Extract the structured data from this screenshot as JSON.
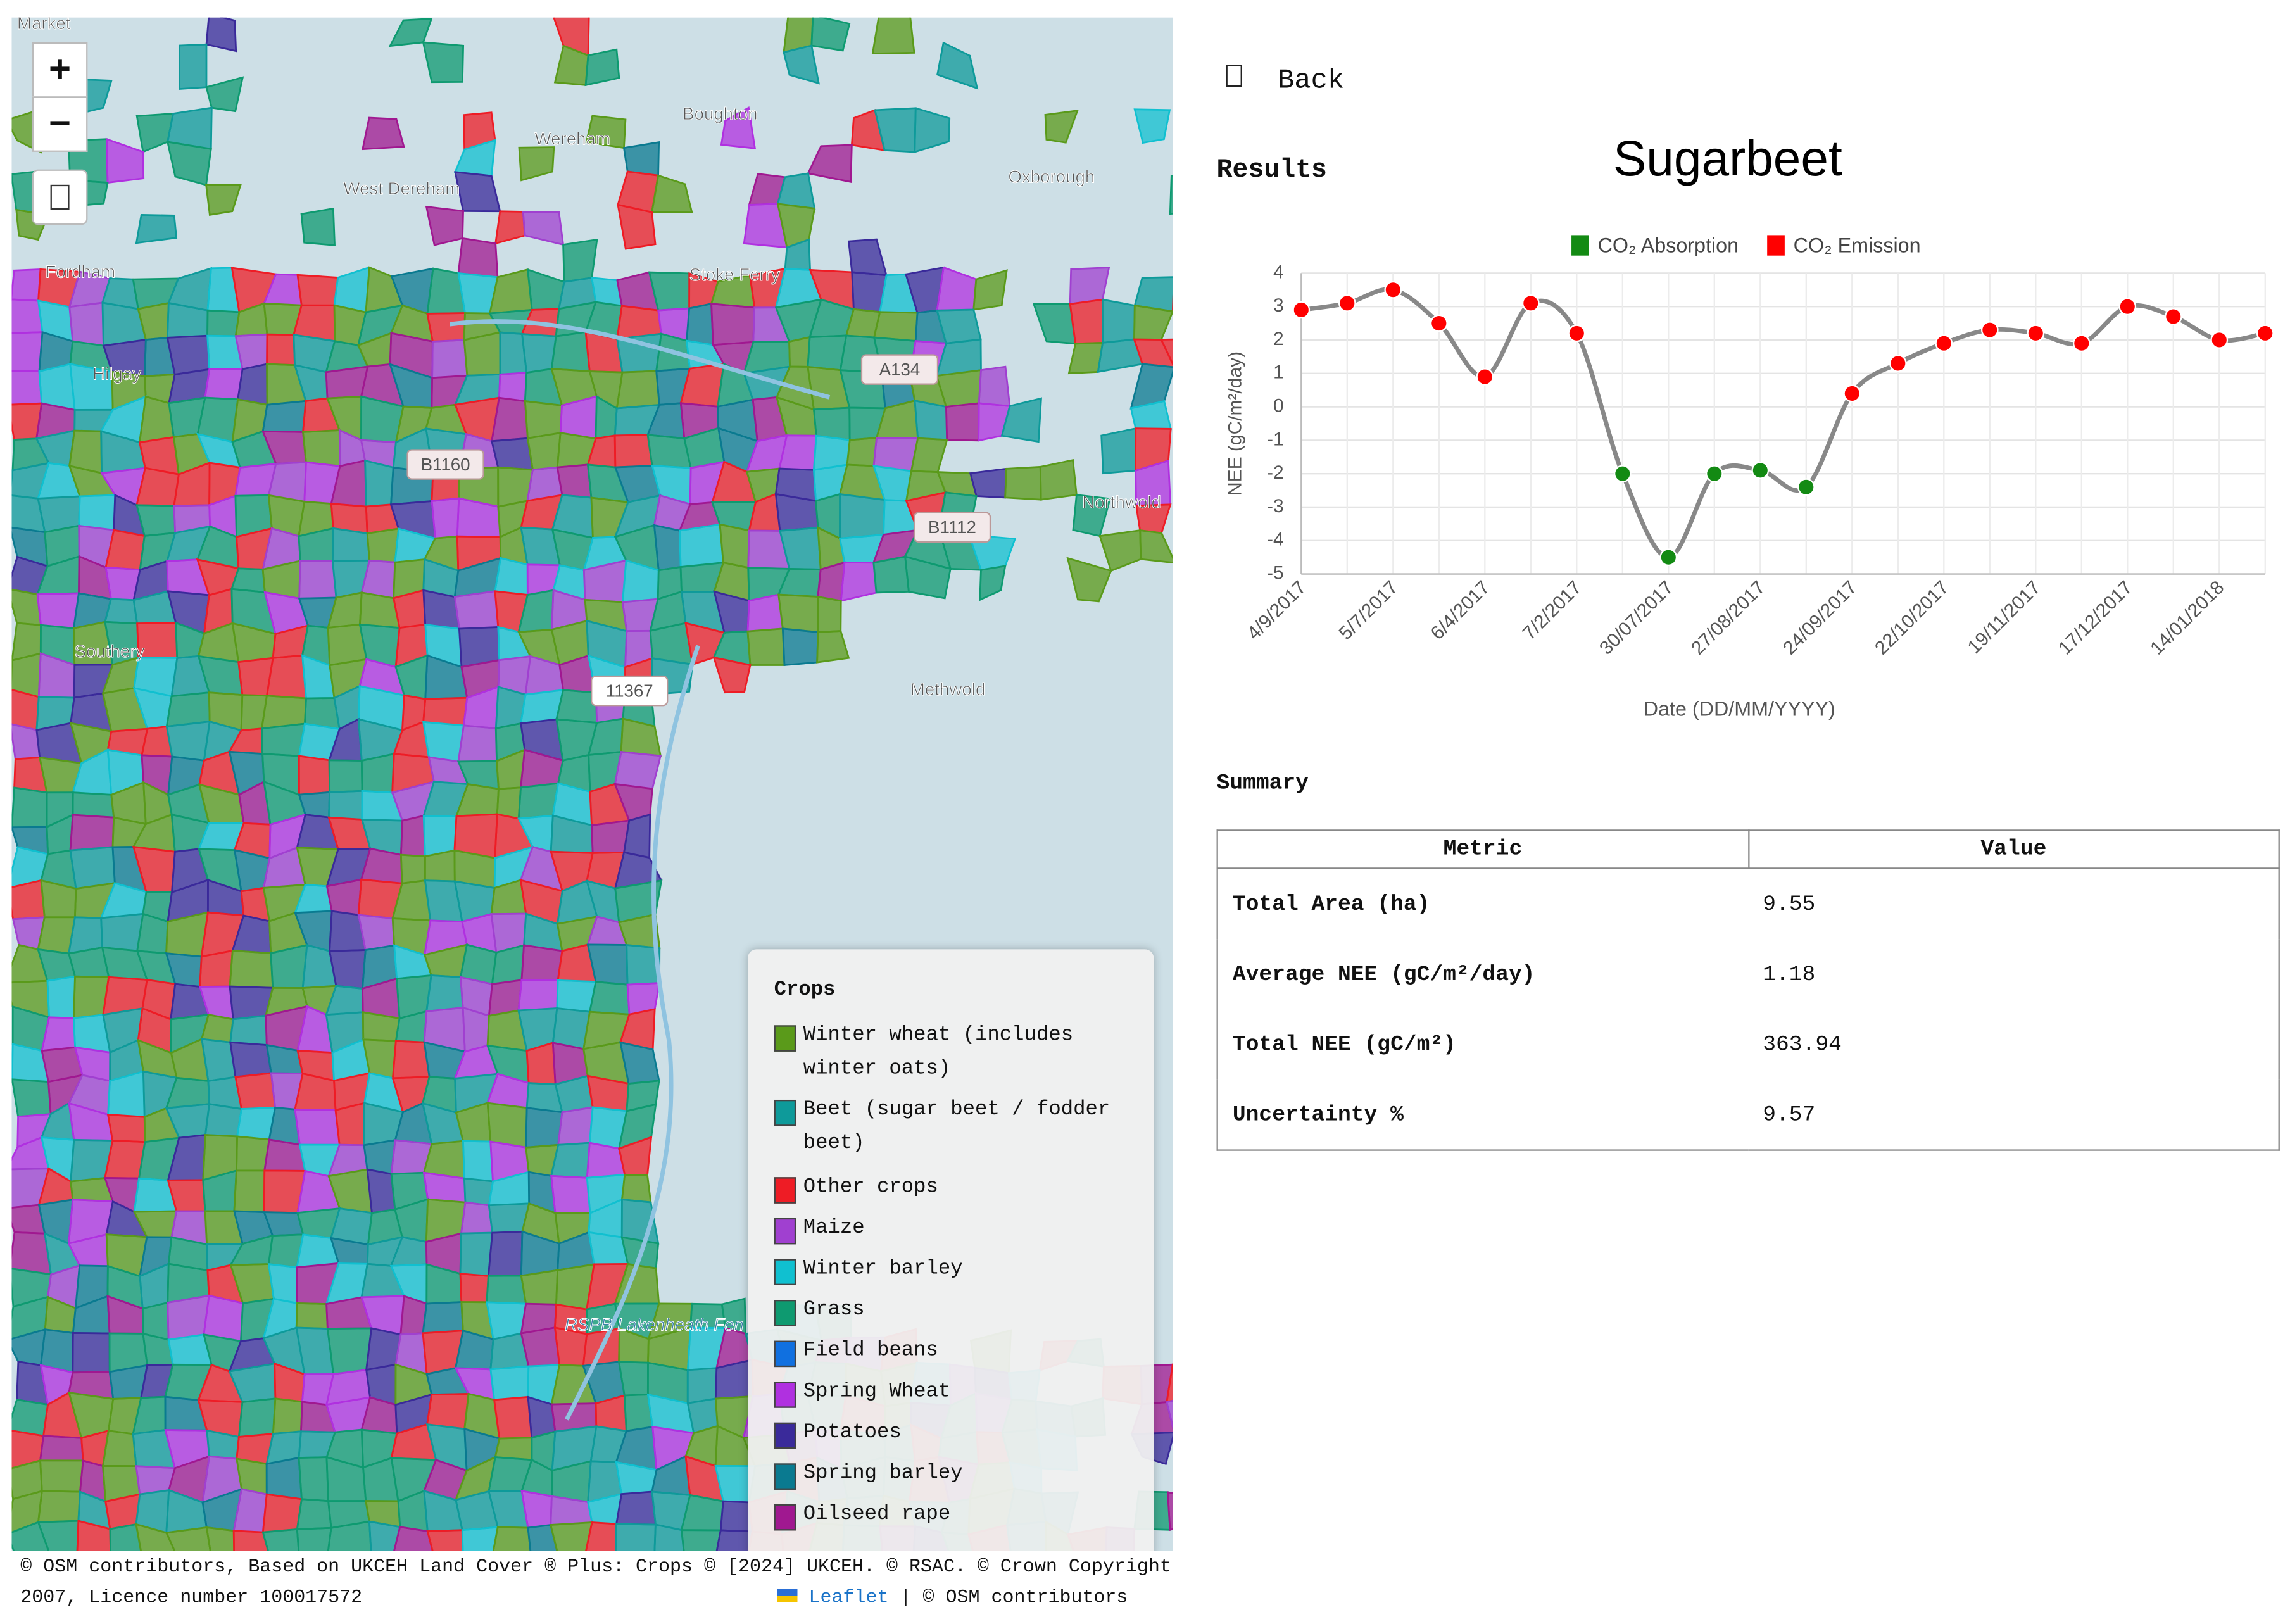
{
  "map": {
    "zoom_in": "+",
    "zoom_out": "−",
    "places": [
      "Market",
      "Boughton",
      "Wereham",
      "West Dereham",
      "Oxborough",
      "Fordham",
      "Stoke Ferry",
      "A134",
      "Hilgay",
      "B1160",
      "B1112",
      "Northwold",
      "Southery",
      "11367",
      "Methwold",
      "RSPB Lakenheath Fen"
    ],
    "legend": {
      "title": "Crops",
      "items": [
        {
          "label": "Winter wheat (includes winter oats)",
          "color": "#5a9a1a"
        },
        {
          "label": "Beet (sugar beet / fodder beet)",
          "color": "#0e9a9a"
        },
        {
          "label": "Other crops",
          "color": "#ee1c25"
        },
        {
          "label": "Maize",
          "color": "#a040d0"
        },
        {
          "label": "Winter barley",
          "color": "#10c0d0"
        },
        {
          "label": "Grass",
          "color": "#0e9a70"
        },
        {
          "label": "Field beans",
          "color": "#1070e0"
        },
        {
          "label": "Spring Wheat",
          "color": "#b030e0"
        },
        {
          "label": "Potatoes",
          "color": "#3a2a9a"
        },
        {
          "label": "Spring barley",
          "color": "#0a7a90"
        },
        {
          "label": "Oilseed rape",
          "color": "#a01890"
        }
      ]
    },
    "attribution": "© OSM contributors, Based on UKCEH Land Cover ® Plus: Crops © [2024] UKCEH. © RSAC. © Crown Copyright 2007, Licence number 100017572",
    "leaflet": "Leaflet",
    "osm": "| © OSM contributors"
  },
  "back": "Back",
  "results": "Results",
  "chart_data": {
    "type": "line",
    "title": "Sugarbeet",
    "legend": [
      {
        "label": "CO₂ Absorption",
        "color": "#138a13"
      },
      {
        "label": "CO₂ Emission",
        "color": "#ff0000"
      }
    ],
    "categories": [
      "4/9/2017",
      null,
      "5/7/2017",
      null,
      "6/4/2017",
      null,
      "7/2/2017",
      null,
      "30/07/2017",
      null,
      "27/08/2017",
      null,
      "24/09/2017",
      null,
      "22/10/2017",
      null,
      "19/11/2017",
      null,
      "17/12/2017",
      null,
      "14/01/2018",
      null
    ],
    "values": [
      2.9,
      3.1,
      3.5,
      2.5,
      0.9,
      3.1,
      2.2,
      -2.0,
      -4.5,
      -2.0,
      -1.9,
      -2.4,
      0.4,
      1.3,
      1.9,
      2.3,
      2.2,
      1.9,
      3.0,
      2.7,
      2.0,
      2.2
    ],
    "xlabel": "Date (DD/MM/YYYY)",
    "ylabel": "NEE (gC/m²/day)",
    "ylim": [
      -5,
      4
    ],
    "yticks": [
      -5,
      -4,
      -3,
      -2,
      -1,
      0,
      1,
      2,
      3,
      4
    ],
    "grid": true,
    "line_color": "#888888"
  },
  "summary": {
    "title": "Summary",
    "header": [
      "Metric",
      "Value"
    ],
    "rows": [
      [
        "Total Area (ha)",
        "9.55"
      ],
      [
        "Average NEE (gC/m²/day)",
        "1.18"
      ],
      [
        "Total NEE (gC/m²)",
        "363.94"
      ],
      [
        "Uncertainty %",
        "9.57"
      ]
    ]
  }
}
